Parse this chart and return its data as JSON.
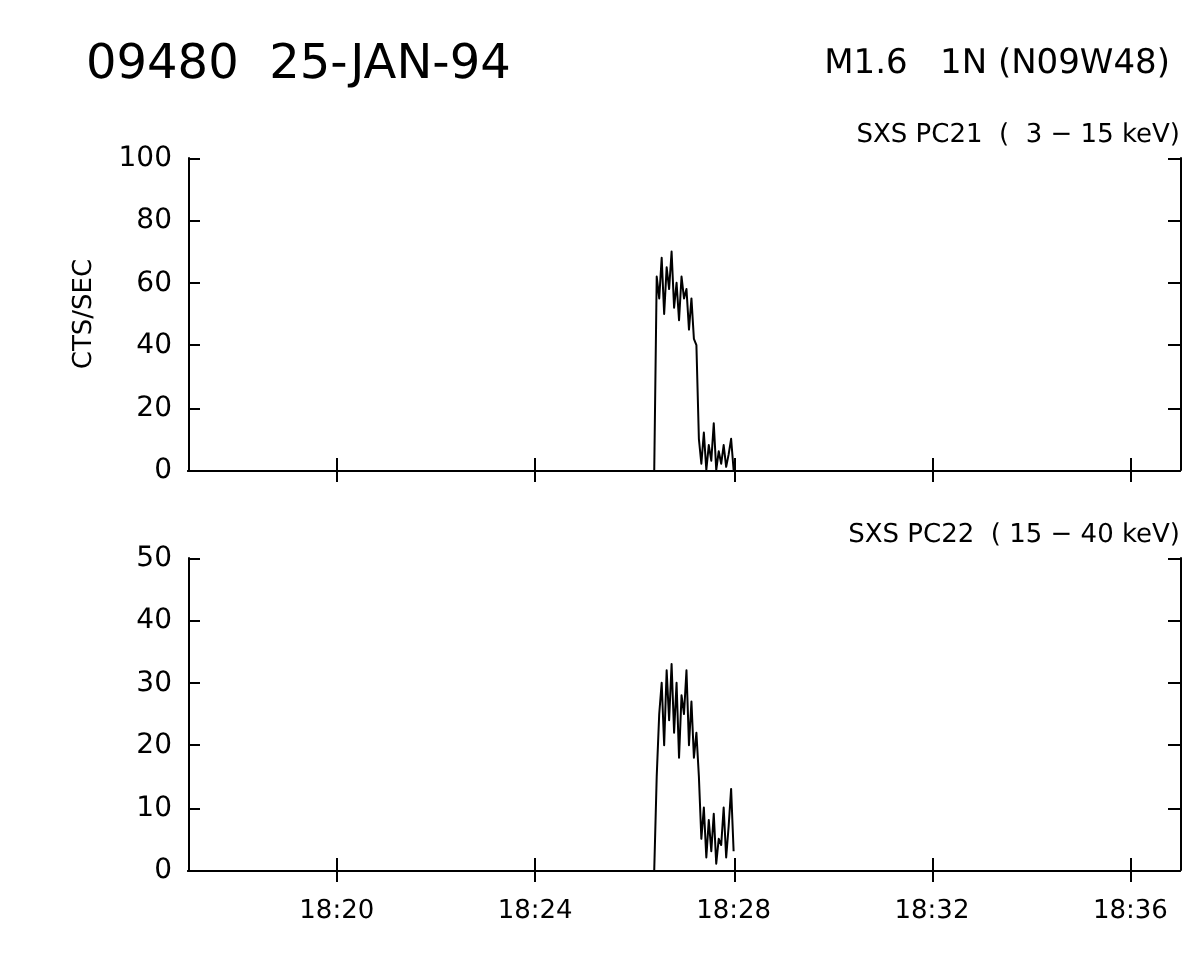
{
  "chart_data": [
    {
      "type": "line",
      "title": "09480  25-JAN-94",
      "subtitle": "M1.6   1N (N09W48)",
      "ylabel": "CTS/SEC",
      "annotations": [
        "SXS PC21  (  3 − 15 keV)"
      ],
      "x": [
        18.44,
        18.44083,
        18.44167,
        18.4425,
        18.44333,
        18.44417,
        18.445,
        18.44583,
        18.44667,
        18.4475,
        18.44833,
        18.44917,
        18.45,
        18.45083,
        18.45167,
        18.4525,
        18.45333,
        18.45417,
        18.455,
        18.45583,
        18.45667,
        18.4575,
        18.45833,
        18.45917,
        18.46,
        18.46083,
        18.46167,
        18.4625,
        18.46333,
        18.46417,
        18.465,
        18.46583,
        18.46667
      ],
      "series": [
        {
          "color": "#000000",
          "values": [
            0,
            62,
            55,
            68,
            50,
            65,
            58,
            70,
            52,
            60,
            48,
            62,
            55,
            58,
            45,
            55,
            42,
            40,
            10,
            2,
            12,
            0,
            8,
            3,
            15,
            0,
            6,
            2,
            8,
            1,
            5,
            10,
            0
          ]
        }
      ],
      "xlim": [
        18.28333,
        18.61667
      ],
      "ylim": [
        0,
        100
      ],
      "yticks": [
        0,
        20,
        40,
        60,
        80,
        100
      ],
      "tick_labels": "y",
      "grid": false,
      "marker": "none",
      "line_style": "solid"
    },
    {
      "type": "line",
      "annotations": [
        "SXS PC22  ( 15 − 40 keV)"
      ],
      "x": [
        18.44,
        18.44083,
        18.44167,
        18.4425,
        18.44333,
        18.44417,
        18.445,
        18.44583,
        18.44667,
        18.4475,
        18.44833,
        18.44917,
        18.45,
        18.45083,
        18.45167,
        18.4525,
        18.45333,
        18.45417,
        18.455,
        18.45583,
        18.45667,
        18.4575,
        18.45833,
        18.45917,
        18.46,
        18.46083,
        18.46167,
        18.4625,
        18.46333,
        18.46417,
        18.465,
        18.46583,
        18.46667
      ],
      "series": [
        {
          "color": "#000000",
          "values": [
            0,
            15,
            25,
            30,
            20,
            32,
            24,
            33,
            22,
            30,
            18,
            28,
            25,
            32,
            20,
            27,
            18,
            22,
            15,
            5,
            10,
            2,
            8,
            3,
            9,
            1,
            5,
            4,
            10,
            2,
            7,
            13,
            3
          ]
        }
      ],
      "xlim": [
        18.28333,
        18.61667
      ],
      "xticks": [
        {
          "value": 18.33333,
          "label": "18:20"
        },
        {
          "value": 18.4,
          "label": "18:24"
        },
        {
          "value": 18.46667,
          "label": "18:28"
        },
        {
          "value": 18.53333,
          "label": "18:32"
        },
        {
          "value": 18.6,
          "label": "18:36"
        }
      ],
      "ylim": [
        0,
        50
      ],
      "yticks": [
        0,
        10,
        20,
        30,
        40,
        50
      ],
      "grid": false,
      "marker": "none",
      "line_style": "solid"
    }
  ]
}
